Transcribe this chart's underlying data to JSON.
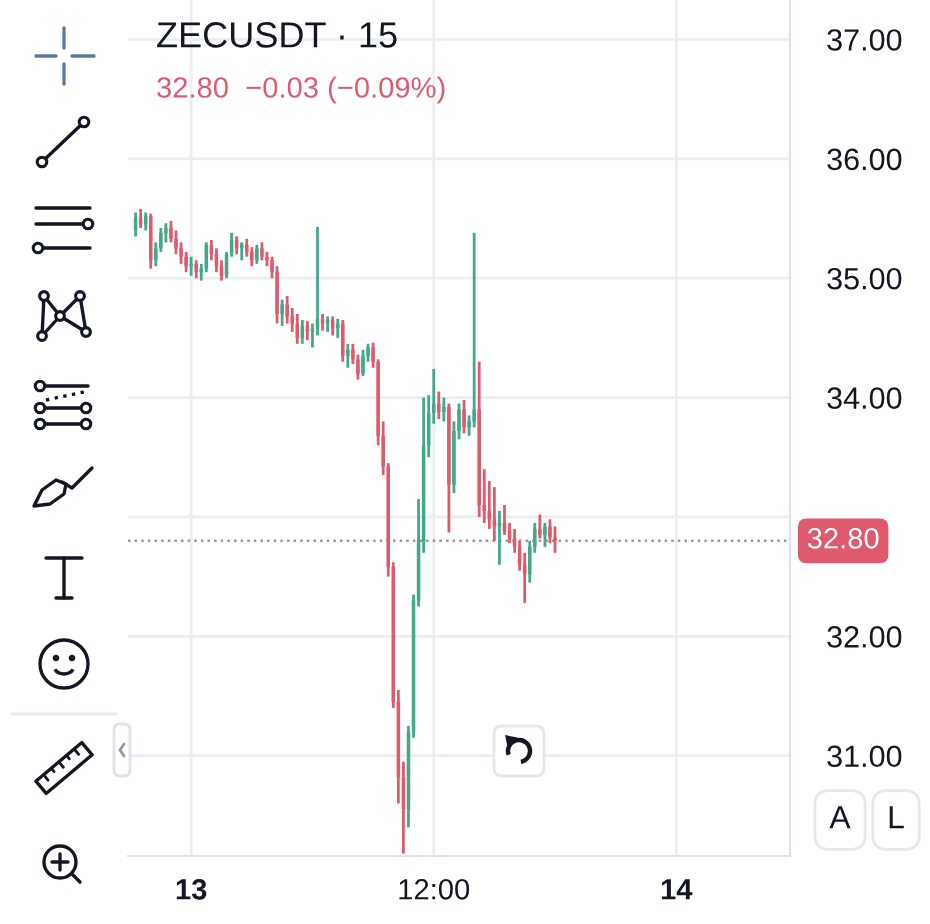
{
  "chart_data": {
    "type": "candlestick",
    "title": "ZECUSDT · 15",
    "subtitle": "32.80  −0.03 (−0.09%)",
    "categories": [
      null,
      null,
      null,
      null,
      null,
      null,
      null,
      null,
      null,
      null,
      null,
      "13",
      null,
      null,
      null,
      null,
      null,
      null,
      null,
      null,
      null,
      null,
      null,
      null,
      null,
      null,
      null,
      null,
      null,
      null,
      null,
      null,
      null,
      null,
      null,
      null,
      null,
      null,
      null,
      null,
      null,
      null,
      null,
      null,
      null,
      null,
      null,
      null,
      null,
      null,
      null,
      null,
      null,
      null,
      null,
      null,
      null,
      null,
      null,
      "12:00",
      null,
      null,
      null,
      null,
      null,
      null,
      null,
      null,
      null,
      null,
      null,
      null,
      null,
      null,
      null,
      null,
      null,
      null,
      null,
      null,
      null,
      null,
      null,
      null,
      null,
      null,
      null,
      null,
      null,
      null,
      null,
      null,
      null,
      null,
      null,
      null,
      null,
      null,
      null,
      null,
      null,
      null,
      null,
      null,
      null,
      null,
      null,
      "14",
      null,
      null,
      null,
      null,
      null,
      null,
      null,
      null,
      null,
      null,
      null,
      null,
      null,
      null,
      null,
      null,
      null,
      null,
      null,
      null,
      null,
      null
    ],
    "ohlc": [
      [
        35.4,
        35.55,
        35.35,
        35.5
      ],
      [
        35.5,
        35.58,
        35.42,
        35.45
      ],
      [
        35.45,
        35.55,
        35.4,
        35.52
      ],
      [
        35.52,
        35.54,
        35.08,
        35.15
      ],
      [
        35.15,
        35.3,
        35.1,
        35.25
      ],
      [
        35.25,
        35.42,
        35.22,
        35.38
      ],
      [
        35.38,
        35.46,
        35.3,
        35.42
      ],
      [
        35.42,
        35.48,
        35.3,
        35.33
      ],
      [
        35.33,
        35.4,
        35.2,
        35.25
      ],
      [
        35.25,
        35.3,
        35.12,
        35.18
      ],
      [
        35.18,
        35.22,
        35.05,
        35.1
      ],
      [
        35.1,
        35.18,
        35.02,
        35.12
      ],
      [
        35.12,
        35.15,
        35.0,
        35.05
      ],
      [
        35.05,
        35.12,
        34.98,
        35.08
      ],
      [
        35.08,
        35.3,
        35.05,
        35.28
      ],
      [
        35.28,
        35.32,
        35.15,
        35.2
      ],
      [
        35.2,
        35.25,
        35.05,
        35.1
      ],
      [
        35.1,
        35.15,
        34.98,
        35.02
      ],
      [
        35.02,
        35.22,
        35.0,
        35.2
      ],
      [
        35.2,
        35.38,
        35.18,
        35.32
      ],
      [
        35.32,
        35.35,
        35.2,
        35.25
      ],
      [
        35.25,
        35.3,
        35.15,
        35.28
      ],
      [
        35.28,
        35.33,
        35.18,
        35.22
      ],
      [
        35.22,
        35.26,
        35.1,
        35.15
      ],
      [
        35.15,
        35.28,
        35.12,
        35.25
      ],
      [
        35.25,
        35.3,
        35.15,
        35.18
      ],
      [
        35.18,
        35.22,
        35.1,
        35.15
      ],
      [
        35.15,
        35.18,
        35.0,
        35.05
      ],
      [
        35.05,
        35.1,
        34.62,
        34.7
      ],
      [
        34.7,
        34.82,
        34.6,
        34.78
      ],
      [
        34.78,
        34.85,
        34.62,
        34.68
      ],
      [
        34.68,
        34.75,
        34.55,
        34.62
      ],
      [
        34.62,
        34.7,
        34.45,
        34.5
      ],
      [
        34.5,
        34.65,
        34.45,
        34.6
      ],
      [
        34.6,
        34.64,
        34.48,
        34.55
      ],
      [
        34.55,
        34.62,
        34.42,
        34.58
      ],
      [
        34.58,
        35.43,
        34.52,
        34.66
      ],
      [
        34.66,
        34.7,
        34.56,
        34.62
      ],
      [
        34.62,
        34.68,
        34.55,
        34.65
      ],
      [
        34.65,
        34.68,
        34.52,
        34.58
      ],
      [
        34.58,
        34.66,
        34.5,
        34.62
      ],
      [
        34.62,
        34.65,
        34.3,
        34.35
      ],
      [
        34.35,
        34.45,
        34.25,
        34.4
      ],
      [
        34.4,
        34.45,
        34.28,
        34.32
      ],
      [
        34.32,
        34.36,
        34.15,
        34.2
      ],
      [
        34.2,
        34.4,
        34.18,
        34.35
      ],
      [
        34.35,
        34.45,
        34.3,
        34.42
      ],
      [
        34.42,
        34.46,
        34.25,
        34.3
      ],
      [
        34.3,
        34.32,
        33.6,
        33.68
      ],
      [
        33.68,
        33.8,
        33.35,
        33.42
      ],
      [
        33.42,
        33.45,
        32.5,
        32.58
      ],
      [
        32.58,
        32.62,
        31.4,
        31.45
      ],
      [
        31.45,
        31.55,
        30.6,
        30.82
      ],
      [
        30.82,
        30.95,
        30.18,
        30.55
      ],
      [
        30.55,
        31.25,
        30.4,
        31.2
      ],
      [
        31.2,
        32.35,
        31.15,
        32.3
      ],
      [
        32.3,
        33.15,
        32.25,
        32.8
      ],
      [
        32.8,
        34.0,
        32.7,
        33.6
      ],
      [
        33.6,
        34.02,
        33.5,
        33.87
      ],
      [
        33.87,
        34.24,
        33.78,
        33.95
      ],
      [
        33.95,
        34.05,
        33.82,
        33.88
      ],
      [
        33.88,
        34.0,
        33.8,
        33.92
      ],
      [
        33.92,
        33.95,
        32.87,
        33.27
      ],
      [
        33.27,
        33.8,
        33.2,
        33.72
      ],
      [
        33.72,
        33.95,
        33.65,
        33.9
      ],
      [
        33.9,
        33.98,
        33.7,
        33.75
      ],
      [
        33.75,
        33.85,
        33.68,
        33.8
      ],
      [
        33.8,
        35.38,
        33.75,
        33.9
      ],
      [
        33.9,
        34.3,
        33.0,
        33.1
      ],
      [
        33.1,
        33.4,
        32.95,
        33.05
      ],
      [
        33.05,
        33.3,
        32.9,
        32.98
      ],
      [
        32.98,
        33.25,
        32.8,
        32.92
      ],
      [
        32.92,
        33.05,
        32.6,
        32.95
      ],
      [
        32.95,
        33.1,
        32.85,
        32.88
      ],
      [
        32.88,
        32.95,
        32.78,
        32.82
      ],
      [
        32.82,
        32.9,
        32.7,
        32.75
      ],
      [
        32.75,
        32.8,
        32.55,
        32.6
      ],
      [
        32.6,
        32.7,
        32.28,
        32.52
      ],
      [
        32.52,
        32.8,
        32.45,
        32.75
      ],
      [
        32.75,
        32.95,
        32.7,
        32.9
      ],
      [
        32.9,
        33.02,
        32.82,
        32.85
      ],
      [
        32.85,
        32.95,
        32.75,
        32.92
      ],
      [
        32.92,
        32.98,
        32.78,
        32.83
      ],
      [
        32.83,
        32.92,
        32.7,
        32.8
      ],
      null,
      null,
      null,
      null,
      null,
      null,
      null,
      null,
      null,
      null,
      null,
      null,
      null,
      null,
      null,
      null,
      null,
      null,
      null,
      null,
      null,
      null,
      null,
      null,
      null,
      null,
      null,
      null,
      null,
      null,
      null,
      null,
      null,
      null,
      null,
      null,
      null,
      null,
      null,
      null,
      null,
      null,
      null,
      null,
      null,
      null
    ],
    "colors": [
      "#42a98a",
      "#e05a6e",
      "#42a98a",
      "#e05a6e",
      "#42a98a",
      "#42a98a",
      "#42a98a",
      "#e05a6e",
      "#e05a6e",
      "#e05a6e",
      "#e05a6e",
      "#42a98a",
      "#e05a6e",
      "#42a98a",
      "#42a98a",
      "#e05a6e",
      "#e05a6e",
      "#e05a6e",
      "#42a98a",
      "#42a98a",
      "#e05a6e",
      "#42a98a",
      "#e05a6e",
      "#e05a6e",
      "#42a98a",
      "#e05a6e",
      "#e05a6e",
      "#e05a6e",
      "#e05a6e",
      "#42a98a",
      "#e05a6e",
      "#e05a6e",
      "#e05a6e",
      "#42a98a",
      "#e05a6e",
      "#42a98a",
      "#42a98a",
      "#e05a6e",
      "#42a98a",
      "#e05a6e",
      "#42a98a",
      "#e05a6e",
      "#42a98a",
      "#e05a6e",
      "#e05a6e",
      "#42a98a",
      "#42a98a",
      "#e05a6e",
      "#e05a6e",
      "#e05a6e",
      "#e05a6e",
      "#e05a6e",
      "#e05a6e",
      "#e05a6e",
      "#42a98a",
      "#42a98a",
      "#42a98a",
      "#42a98a",
      "#42a98a",
      "#42a98a",
      "#e05a6e",
      "#42a98a",
      "#e05a6e",
      "#42a98a",
      "#42a98a",
      "#e05a6e",
      "#42a98a",
      "#42a98a",
      "#e05a6e",
      "#e05a6e",
      "#e05a6e",
      "#e05a6e",
      "#42a98a",
      "#e05a6e",
      "#e05a6e",
      "#e05a6e",
      "#e05a6e",
      "#e05a6e",
      "#42a98a",
      "#42a98a",
      "#e05a6e",
      "#42a98a",
      "#e05a6e",
      "#e05a6e",
      null,
      null,
      null,
      null,
      null,
      null,
      null,
      null,
      null,
      null,
      null,
      null,
      null,
      null,
      null,
      null,
      null,
      null,
      null,
      null,
      null,
      null,
      null,
      null,
      null,
      null,
      null,
      null,
      null,
      null,
      null,
      null,
      null,
      null,
      null,
      null,
      null,
      null,
      null,
      null,
      null,
      null,
      null,
      null,
      null,
      null
    ],
    "ylim": [
      30.16,
      37.33
    ],
    "yticks": [
      {
        "value": 31,
        "label": "31.00"
      },
      {
        "value": 32,
        "label": "32.00"
      },
      {
        "value": 33,
        "label": null
      },
      {
        "value": 34,
        "label": "34.00"
      },
      {
        "value": 35,
        "label": "35.00"
      },
      {
        "value": 36,
        "label": "36.00"
      },
      {
        "value": 37,
        "label": "37.00"
      }
    ],
    "grid": true,
    "ref_lines": [
      {
        "axis": "y",
        "value": 32.8,
        "label": "32.80",
        "color": "#9598a1",
        "line_style": "dotted"
      }
    ],
    "annotations": [
      "A",
      "L"
    ]
  }
}
